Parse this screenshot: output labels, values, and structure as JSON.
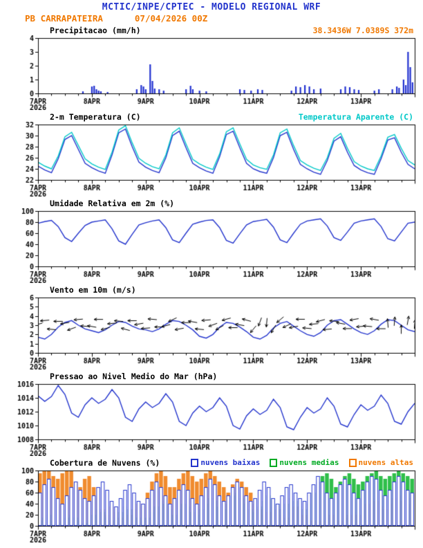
{
  "header": {
    "title": "MCTIC/INPE/CPTEC - MODELO REGIONAL WRF",
    "station": "PB CARRAPATEIRA",
    "run": "07/04/2026 00Z"
  },
  "colors": {
    "title_blue": "#2233cc",
    "orange": "#f07800",
    "line_blue": "#2233cc",
    "cyan": "#00c8c8",
    "green": "#00aa22",
    "bar_blue": "#2030d0",
    "black": "#000000"
  },
  "x_axis": {
    "range_hours": [
      0,
      168
    ],
    "major_tick_hours": 24,
    "minor_tick_hours": 6,
    "labels": [
      "7APR",
      "8APR",
      "9APR",
      "10APR",
      "11APR",
      "12APR",
      "13APR"
    ],
    "year_label": "2026"
  },
  "chart_data": [
    {
      "type": "bar",
      "title": "Precipitacao (mm/h)",
      "annotation": "38.3436W 7.0389S 372m",
      "ylim": [
        0,
        4
      ],
      "yticks": [
        0,
        1,
        2,
        3,
        4
      ],
      "series": [
        {
          "name": "precipitacao",
          "color": "#2030d0",
          "points_t_v": [
            [
              20,
              0.15
            ],
            [
              24,
              0.5
            ],
            [
              25,
              0.55
            ],
            [
              26,
              0.3
            ],
            [
              27,
              0.2
            ],
            [
              28,
              0.15
            ],
            [
              31,
              0.1
            ],
            [
              44,
              0.3
            ],
            [
              46,
              0.6
            ],
            [
              47,
              0.5
            ],
            [
              48,
              0.3
            ],
            [
              50,
              2.1
            ],
            [
              51,
              0.9
            ],
            [
              52,
              0.35
            ],
            [
              54,
              0.3
            ],
            [
              56,
              0.2
            ],
            [
              66,
              0.3
            ],
            [
              68,
              0.55
            ],
            [
              69,
              0.3
            ],
            [
              72,
              0.2
            ],
            [
              75,
              0.15
            ],
            [
              90,
              0.3
            ],
            [
              92,
              0.25
            ],
            [
              95,
              0.2
            ],
            [
              98,
              0.3
            ],
            [
              100,
              0.25
            ],
            [
              113,
              0.2
            ],
            [
              115,
              0.5
            ],
            [
              117,
              0.45
            ],
            [
              119,
              0.6
            ],
            [
              121,
              0.5
            ],
            [
              123,
              0.3
            ],
            [
              126,
              0.35
            ],
            [
              135,
              0.3
            ],
            [
              137,
              0.5
            ],
            [
              139,
              0.45
            ],
            [
              141,
              0.3
            ],
            [
              143,
              0.25
            ],
            [
              150,
              0.2
            ],
            [
              152,
              0.3
            ],
            [
              158,
              0.3
            ],
            [
              160,
              0.5
            ],
            [
              161,
              0.4
            ],
            [
              163,
              1.0
            ],
            [
              164,
              0.6
            ],
            [
              165,
              3.0
            ],
            [
              166,
              1.9
            ],
            [
              167,
              0.8
            ]
          ]
        }
      ]
    },
    {
      "type": "line",
      "title": "2-m Temperatura (C)",
      "legend_right": "Temperatura Aparente (C)",
      "ylim": [
        22,
        32
      ],
      "yticks": [
        22,
        24,
        26,
        28,
        30,
        32
      ],
      "series": [
        {
          "name": "temperatura-2m",
          "color": "#2233cc",
          "dt_hours": 3,
          "values": [
            24.5,
            23.8,
            23.3,
            25.8,
            29.3,
            30.0,
            27.5,
            25.0,
            24.2,
            23.6,
            23.2,
            26.5,
            30.5,
            31.2,
            28.0,
            25.2,
            24.3,
            23.7,
            23.3,
            26.0,
            30.0,
            30.8,
            27.8,
            25.0,
            24.2,
            23.6,
            23.2,
            26.2,
            30.2,
            30.8,
            27.8,
            25.0,
            24.0,
            23.5,
            23.2,
            26.0,
            30.0,
            30.6,
            27.5,
            24.8,
            24.0,
            23.4,
            23.0,
            25.5,
            29.0,
            29.8,
            27.0,
            24.6,
            23.8,
            23.3,
            23.0,
            25.8,
            29.2,
            29.6,
            27.0,
            24.8,
            24.0
          ]
        },
        {
          "name": "temperatura-aparente",
          "color": "#00c8c8",
          "dt_hours": 3,
          "values": [
            25.2,
            24.5,
            24.0,
            26.3,
            29.8,
            30.6,
            28.2,
            25.8,
            24.9,
            24.3,
            23.9,
            27.0,
            31.0,
            31.8,
            28.7,
            25.9,
            25.0,
            24.4,
            24.0,
            26.5,
            30.5,
            31.4,
            28.5,
            25.7,
            24.9,
            24.3,
            23.9,
            26.7,
            30.7,
            31.4,
            28.5,
            25.7,
            24.7,
            24.2,
            23.9,
            26.5,
            30.5,
            31.2,
            28.2,
            25.5,
            24.7,
            24.1,
            23.7,
            26.0,
            29.5,
            30.4,
            27.7,
            25.3,
            24.5,
            24.0,
            23.7,
            26.3,
            29.7,
            30.2,
            27.7,
            25.5,
            24.7
          ]
        }
      ]
    },
    {
      "type": "line",
      "title": "Umidade Relativa em 2m (%)",
      "ylim": [
        0,
        100
      ],
      "yticks": [
        0,
        20,
        40,
        60,
        80,
        100
      ],
      "series": [
        {
          "name": "umidade-relativa",
          "color": "#2233cc",
          "dt_hours": 3,
          "values": [
            78,
            81,
            83,
            72,
            52,
            45,
            60,
            74,
            80,
            82,
            84,
            68,
            46,
            40,
            58,
            75,
            79,
            82,
            84,
            70,
            48,
            43,
            60,
            76,
            80,
            83,
            84,
            70,
            47,
            42,
            59,
            75,
            81,
            83,
            85,
            71,
            48,
            43,
            60,
            76,
            82,
            84,
            86,
            73,
            52,
            47,
            62,
            78,
            82,
            84,
            86,
            72,
            50,
            46,
            62,
            78,
            80
          ]
        }
      ]
    },
    {
      "type": "line",
      "title": "Vento em 10m (m/s)",
      "ylim": [
        0,
        6
      ],
      "yticks": [
        0,
        1,
        2,
        3,
        4,
        5,
        6
      ],
      "series": [
        {
          "name": "velocidade-vento",
          "color": "#2233cc",
          "dt_hours": 3,
          "values": [
            1.7,
            1.5,
            2.0,
            2.8,
            3.3,
            3.5,
            3.0,
            2.6,
            2.4,
            2.2,
            2.5,
            3.0,
            3.4,
            3.3,
            2.9,
            2.6,
            2.5,
            2.3,
            2.6,
            3.1,
            3.5,
            3.4,
            3.0,
            2.5,
            1.8,
            1.6,
            2.0,
            2.8,
            3.3,
            3.2,
            2.8,
            2.3,
            1.7,
            1.5,
            1.9,
            2.7,
            3.2,
            3.4,
            2.9,
            2.4,
            2.0,
            1.8,
            2.2,
            3.0,
            3.5,
            3.6,
            3.1,
            2.6,
            2.2,
            2.0,
            2.4,
            3.1,
            3.6,
            3.5,
            3.0,
            2.5,
            2.3
          ]
        }
      ],
      "wind_arrows": {
        "dt_hours": 3,
        "base_level": 3.1,
        "directions_deg": [
          195,
          185,
          175,
          180,
          190,
          200,
          185,
          175,
          170,
          180,
          195,
          185,
          175,
          165,
          180,
          190,
          185,
          175,
          180,
          195,
          205,
          190,
          180,
          170,
          175,
          185,
          200,
          210,
          195,
          180,
          170,
          165,
          230,
          250,
          265,
          240,
          220,
          205,
          190,
          180,
          175,
          185,
          195,
          185,
          175,
          170,
          180,
          190,
          185,
          175,
          170,
          180,
          95,
          85,
          90,
          80,
          85
        ]
      }
    },
    {
      "type": "line",
      "title": "Pressao ao Nivel Medio do Mar (hPa)",
      "ylim": [
        1008,
        1016
      ],
      "yticks": [
        1008,
        1010,
        1012,
        1014,
        1016
      ],
      "series": [
        {
          "name": "pressao-nivel-mar",
          "color": "#2233cc",
          "dt_hours": 3,
          "values": [
            1014.3,
            1013.5,
            1014.2,
            1015.8,
            1014.5,
            1011.8,
            1011.2,
            1013.0,
            1014.0,
            1013.2,
            1013.8,
            1015.2,
            1014.0,
            1011.2,
            1010.6,
            1012.4,
            1013.4,
            1012.6,
            1013.2,
            1014.6,
            1013.4,
            1010.6,
            1010.0,
            1011.8,
            1012.8,
            1012.0,
            1012.6,
            1014.0,
            1012.8,
            1010.0,
            1009.5,
            1011.4,
            1012.4,
            1011.6,
            1012.2,
            1013.8,
            1012.6,
            1009.8,
            1009.4,
            1011.2,
            1012.6,
            1011.8,
            1012.4,
            1014.0,
            1012.8,
            1010.2,
            1009.8,
            1011.6,
            1013.0,
            1012.2,
            1012.8,
            1014.4,
            1013.2,
            1010.6,
            1010.2,
            1012.0,
            1013.2
          ]
        }
      ]
    },
    {
      "type": "bar",
      "title": "Cobertura de Nuvens (%)",
      "dt_hours": 2,
      "ylim": [
        0,
        100
      ],
      "yticks": [
        0,
        20,
        40,
        60,
        80,
        100
      ],
      "legend": [
        {
          "label": "nuvens baixas",
          "color": "#2233cc"
        },
        {
          "label": "nuvens medias",
          "color": "#00aa22"
        },
        {
          "label": "nuvens altas",
          "color": "#f07800"
        }
      ],
      "series": [
        {
          "name": "nuvens-altas",
          "color": "#f08b2e",
          "values": [
            95,
            100,
            100,
            90,
            85,
            95,
            100,
            100,
            80,
            70,
            85,
            90,
            70,
            50,
            30,
            20,
            35,
            25,
            15,
            10,
            20,
            30,
            40,
            35,
            60,
            80,
            95,
            100,
            90,
            70,
            70,
            85,
            95,
            100,
            90,
            80,
            85,
            95,
            100,
            90,
            80,
            70,
            60,
            75,
            85,
            80,
            70,
            60,
            40,
            30,
            20,
            25,
            35,
            30,
            20,
            15,
            25,
            35,
            30,
            20,
            15,
            10,
            5,
            10,
            15,
            20,
            15,
            10,
            15,
            20,
            25,
            20,
            30,
            40,
            50,
            45,
            35,
            30,
            40,
            50,
            55,
            45,
            40,
            50
          ]
        },
        {
          "name": "nuvens-medias",
          "color": "#2fbf4a",
          "values": [
            10,
            15,
            20,
            10,
            5,
            10,
            15,
            20,
            15,
            10,
            5,
            10,
            20,
            30,
            25,
            15,
            10,
            15,
            25,
            35,
            30,
            20,
            15,
            10,
            15,
            25,
            35,
            45,
            40,
            30,
            20,
            30,
            40,
            35,
            25,
            20,
            30,
            40,
            50,
            45,
            35,
            30,
            40,
            55,
            60,
            50,
            40,
            30,
            25,
            35,
            45,
            55,
            50,
            40,
            30,
            40,
            50,
            45,
            35,
            30,
            40,
            60,
            80,
            90,
            95,
            85,
            70,
            80,
            90,
            95,
            85,
            75,
            80,
            90,
            95,
            100,
            90,
            85,
            90,
            95,
            100,
            95,
            90,
            85
          ]
        },
        {
          "name": "nuvens-baixas",
          "color": "#2233cc",
          "hollow": true,
          "values": [
            60,
            75,
            85,
            70,
            50,
            40,
            55,
            70,
            80,
            65,
            50,
            45,
            55,
            70,
            80,
            65,
            45,
            35,
            50,
            65,
            75,
            60,
            45,
            40,
            50,
            65,
            80,
            70,
            55,
            40,
            50,
            65,
            75,
            65,
            50,
            40,
            55,
            70,
            85,
            75,
            55,
            45,
            55,
            70,
            80,
            70,
            55,
            45,
            50,
            65,
            80,
            70,
            50,
            40,
            55,
            70,
            75,
            60,
            50,
            45,
            60,
            75,
            90,
            80,
            60,
            50,
            60,
            75,
            85,
            75,
            60,
            50,
            65,
            80,
            90,
            85,
            65,
            55,
            65,
            80,
            90,
            80,
            65,
            60
          ]
        }
      ]
    }
  ]
}
